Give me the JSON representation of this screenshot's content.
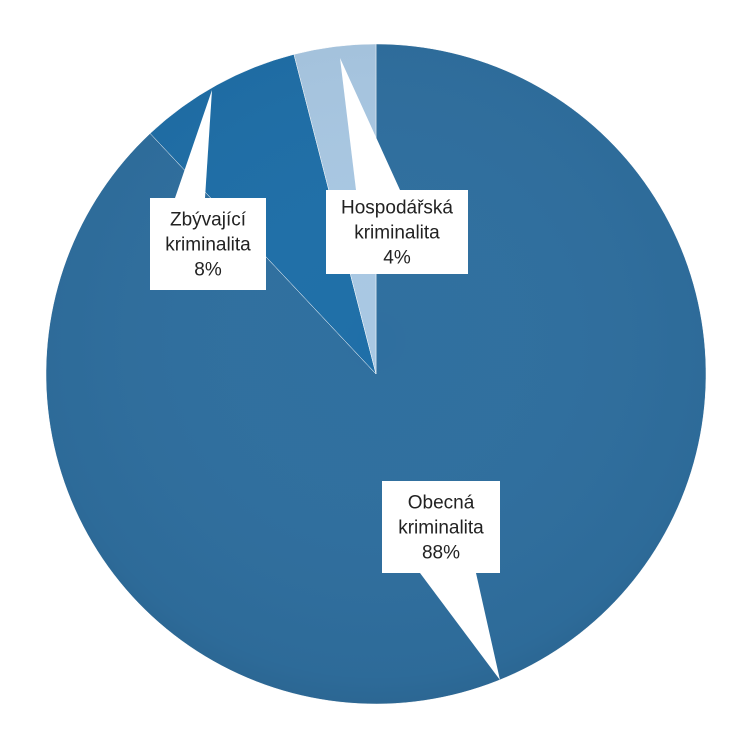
{
  "chart_data": {
    "type": "pie",
    "title": "",
    "slices": [
      {
        "label_lines": [
          "Obecná",
          "kriminalita"
        ],
        "percent_label": "88%",
        "value": 88,
        "color": "#2f6f9f"
      },
      {
        "label_lines": [
          "Zbývající",
          "kriminalita"
        ],
        "percent_label": "8%",
        "value": 8,
        "color": "#1f6fa8"
      },
      {
        "label_lines": [
          "Hospodářská",
          "kriminalita"
        ],
        "percent_label": "4%",
        "value": 4,
        "color": "#a9c8e3"
      }
    ],
    "legend": "none",
    "data_labels": "callouts"
  }
}
